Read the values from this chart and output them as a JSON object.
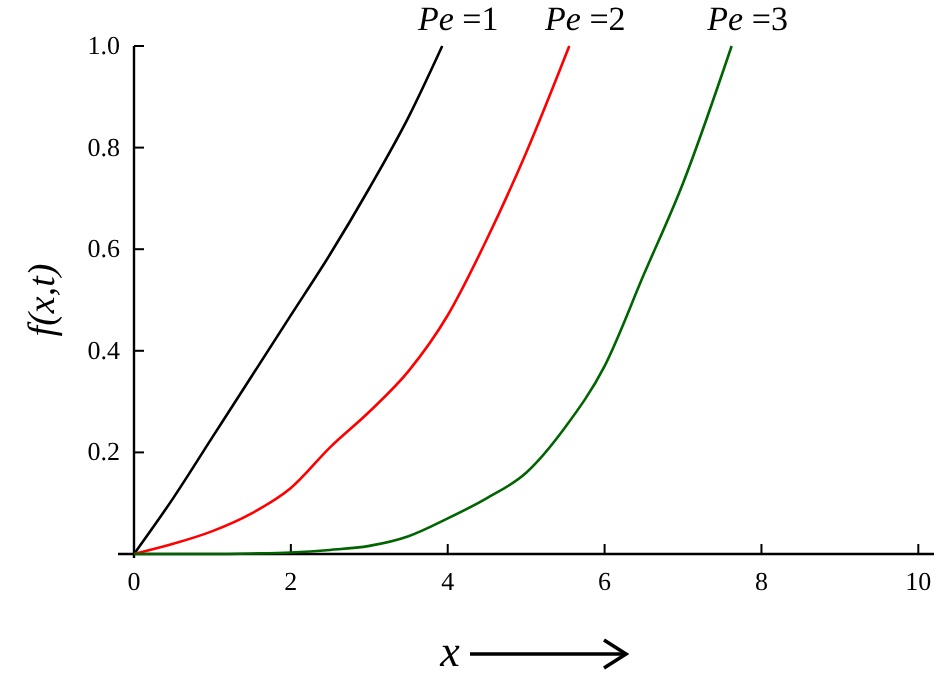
{
  "chart_data": {
    "type": "line",
    "xlabel": "x",
    "ylabel": "f(x,t)",
    "xlim": [
      0,
      10.2
    ],
    "ylim": [
      0,
      1
    ],
    "xticks": [
      0,
      2,
      4,
      6,
      8,
      10
    ],
    "yticks": [
      0.2,
      0.4,
      0.6,
      0.8,
      {
        "value": 1,
        "label": "1.0"
      }
    ],
    "grid": false,
    "legend": false,
    "marker": "none",
    "line_style": "solid",
    "series": [
      {
        "name": "Pe =1",
        "color": "#000000",
        "x": [
          0,
          0.5,
          1,
          1.5,
          2,
          2.5,
          3,
          3.5,
          3.93
        ],
        "values": [
          0,
          0.11,
          0.23,
          0.35,
          0.47,
          0.59,
          0.72,
          0.86,
          1.0
        ]
      },
      {
        "name": "Pe =2",
        "color": "#ff0000",
        "x": [
          0,
          0.5,
          1,
          1.5,
          2,
          2.5,
          3,
          3.5,
          4,
          4.5,
          5,
          5.55
        ],
        "values": [
          0,
          0.02,
          0.045,
          0.08,
          0.13,
          0.21,
          0.28,
          0.36,
          0.47,
          0.62,
          0.79,
          1.0
        ]
      },
      {
        "name": "Pe =3",
        "color": "#006400",
        "x": [
          0,
          1,
          1.5,
          2,
          2.5,
          3,
          3.5,
          4,
          4.5,
          5,
          5.5,
          6,
          6.5,
          7,
          7.62
        ],
        "values": [
          0,
          0,
          0.001,
          0.003,
          0.008,
          0.016,
          0.035,
          0.07,
          0.11,
          0.16,
          0.25,
          0.37,
          0.55,
          0.73,
          1.0
        ]
      }
    ]
  }
}
